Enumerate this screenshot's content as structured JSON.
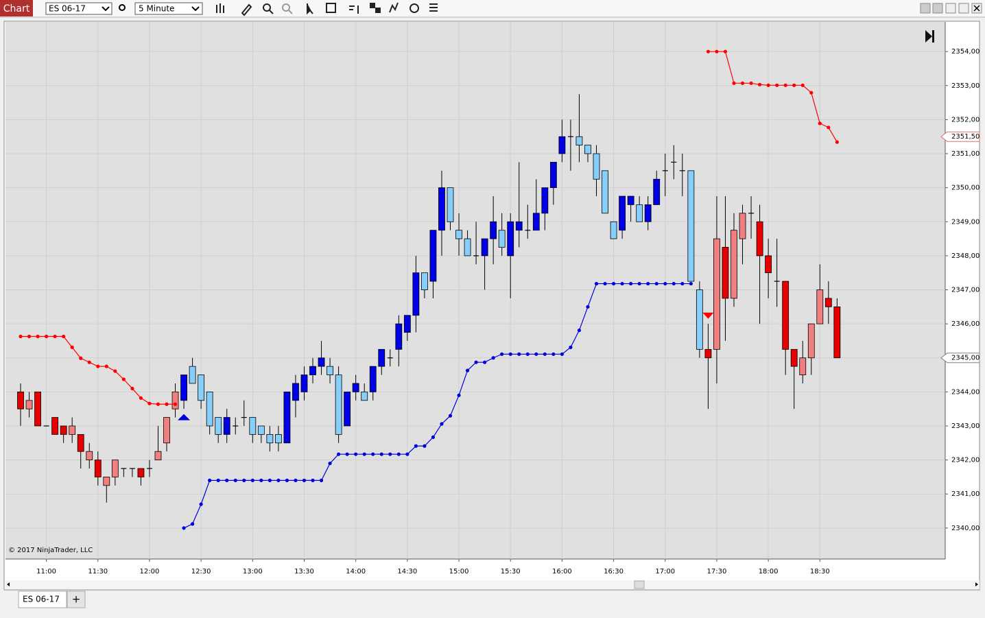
{
  "toolbar": {
    "title": "Chart",
    "instrument": "ES 06-17",
    "interval": "5 Minute"
  },
  "tabs": [
    "ES 06-17"
  ],
  "add_tab": "+",
  "chart_data": {
    "type": "candlestick",
    "copyright": "© 2017 NinjaTrader, LLC",
    "categories": [
      null,
      null,
      null,
      "11:00",
      null,
      null,
      null,
      null,
      null,
      "11:30",
      null,
      null,
      null,
      null,
      null,
      "12:00",
      null,
      null,
      null,
      null,
      null,
      "12:30",
      null,
      null,
      null,
      null,
      null,
      "13:00",
      null,
      null,
      null,
      null,
      null,
      "13:30",
      null,
      null,
      null,
      null,
      null,
      "14:00",
      null,
      null,
      null,
      null,
      null,
      "14:30",
      null,
      null,
      null,
      null,
      null,
      "15:00",
      null,
      null,
      null,
      null,
      null,
      "15:30",
      null,
      null,
      null,
      null,
      null,
      "16:00",
      null,
      null,
      null,
      null,
      null,
      "16:30",
      null,
      null,
      null,
      null,
      null,
      "17:00",
      null,
      null,
      null,
      null,
      null,
      "17:30",
      null,
      null,
      null,
      null,
      null,
      "18:00",
      null,
      null,
      null,
      null,
      null,
      "18:30",
      null,
      null
    ],
    "open": [
      2344,
      2343.5,
      2344,
      2343,
      2343.25,
      2343,
      2342.75,
      2342.75,
      2342,
      2342,
      2341.25,
      2341.5,
      2341.75,
      2341.75,
      2341.75,
      2341.75,
      2342,
      2342.5,
      2343.5,
      2343.75,
      2344.75,
      2344.5,
      2344,
      2343.25,
      2342.75,
      2343,
      2343.25,
      2343.25,
      2343,
      2342.75,
      2342.75,
      2342.5,
      2343.75,
      2344,
      2344.5,
      2344.75,
      2344.75,
      2344.5,
      2343,
      2344,
      2344,
      2344,
      2344.75,
      2345,
      2345.25,
      2345.75,
      2346.25,
      2347.5,
      2347.25,
      2348.75,
      2350,
      2348.75,
      2348.5,
      2348,
      2348,
      2348.5,
      2348.75,
      2348,
      2348.75,
      2348.75,
      2348.75,
      2349.25,
      2350,
      2351,
      2351.5,
      2351.5,
      2351.25,
      2351,
      2350.5,
      2349,
      2348.75,
      2349.5,
      2349.5,
      2349,
      2349.5,
      2350.5,
      2350.75,
      2350.5,
      2350.5,
      2347,
      2345.25,
      2345.25,
      2348.25,
      2346.75,
      2348.5,
      2349.25,
      2349,
      2348,
      2347.25,
      2347.25,
      2345.25,
      2344.5,
      2345,
      2346,
      2346.75,
      2346.5
    ],
    "high": [
      2344.25,
      2344,
      2344,
      2343,
      2343.25,
      2343,
      2343.25,
      2342.75,
      2342.5,
      2342.25,
      2341.5,
      2342,
      2341.75,
      2341.75,
      2341.75,
      2342,
      2343,
      2343.25,
      2344.25,
      2344.5,
      2345,
      2344.5,
      2344,
      2343.25,
      2343.5,
      2343.25,
      2343.75,
      2343.25,
      2343,
      2343,
      2343,
      2344,
      2344.5,
      2344.75,
      2345,
      2345.5,
      2345,
      2344.75,
      2344,
      2344.5,
      2344.25,
      2344.75,
      2345.25,
      2345.25,
      2346.25,
      2346.25,
      2348,
      2347.5,
      2348.75,
      2350.5,
      2350,
      2349.25,
      2348.75,
      2349,
      2348.5,
      2349.75,
      2349.25,
      2349.25,
      2350.75,
      2349.5,
      2350.25,
      2350,
      2350.75,
      2352,
      2352,
      2352.75,
      2351.25,
      2351.25,
      2350.5,
      2349,
      2349.75,
      2349.75,
      2349.75,
      2349.75,
      2350.5,
      2351,
      2351.25,
      2351,
      2350.5,
      2347.25,
      2346,
      2349.75,
      2349.75,
      2349.25,
      2349.5,
      2349.75,
      2349.5,
      2348.5,
      2348.5,
      2347.25,
      2345.25,
      2345.5,
      2346,
      2347.75,
      2347.25,
      2346.75
    ],
    "low": [
      2343,
      2343.25,
      2343,
      2343,
      2342.75,
      2342.5,
      2342.5,
      2341.75,
      2341.75,
      2341.25,
      2340.75,
      2341.25,
      2341.5,
      2341.5,
      2341.25,
      2341.5,
      2342,
      2342.25,
      2343.25,
      2343.5,
      2344.25,
      2343.5,
      2342.75,
      2342.5,
      2342.5,
      2342.75,
      2343,
      2342.5,
      2342.5,
      2342.25,
      2342.25,
      2342.5,
      2343.25,
      2343.75,
      2344.25,
      2344.5,
      2344.25,
      2342.5,
      2343,
      2343.75,
      2343.75,
      2343.75,
      2344.5,
      2344.75,
      2344.75,
      2345.5,
      2345.75,
      2346.75,
      2346.75,
      2348,
      2348.75,
      2348,
      2348,
      2347.75,
      2347,
      2347.75,
      2348,
      2346.75,
      2348.25,
      2348.5,
      2348.75,
      2348.75,
      2349.5,
      2350.75,
      2350.5,
      2350.75,
      2350.75,
      2349.75,
      2349.25,
      2348.5,
      2348.5,
      2349,
      2349,
      2348.75,
      2349.5,
      2349.75,
      2350.25,
      2349.75,
      2347.25,
      2345,
      2343.5,
      2344.25,
      2345.5,
      2346.5,
      2347.75,
      2348.5,
      2346,
      2346.75,
      2346.5,
      2344.5,
      2343.5,
      2344.25,
      2344.5,
      2346,
      2346,
      2345
    ],
    "close": [
      2343.5,
      2343.75,
      2343,
      2343,
      2342.75,
      2342.75,
      2343,
      2342.25,
      2342.25,
      2341.5,
      2341.5,
      2342,
      2341.75,
      2341.75,
      2341.5,
      2341.75,
      2342.25,
      2343.25,
      2344,
      2344.5,
      2344.25,
      2343.75,
      2343,
      2342.75,
      2343.25,
      2343,
      2343.25,
      2342.75,
      2342.75,
      2342.5,
      2342.5,
      2344,
      2344.25,
      2344.5,
      2344.75,
      2345,
      2344.5,
      2342.75,
      2344,
      2344.25,
      2343.75,
      2344.75,
      2345.25,
      2345,
      2346,
      2346.25,
      2347.5,
      2347,
      2348.75,
      2350,
      2349,
      2348.5,
      2348,
      2348,
      2348.5,
      2349,
      2348.25,
      2349,
      2349,
      2348.75,
      2349.25,
      2350,
      2350.75,
      2351.5,
      2351.5,
      2351.25,
      2351,
      2350.25,
      2349.25,
      2348.5,
      2349.75,
      2349.75,
      2349,
      2349.5,
      2350.25,
      2350.5,
      2350.75,
      2350.5,
      2347.25,
      2345.25,
      2345,
      2348.5,
      2346.75,
      2348.75,
      2349.25,
      2349.25,
      2348,
      2347.5,
      2347.25,
      2345.25,
      2344.75,
      2345,
      2346,
      2347,
      2346.5,
      2345
    ],
    "candle_colors": {
      "long_up": "#0000e6",
      "long_down": "#87cefa",
      "short_up": "#f08080",
      "short_down": "#e60000",
      "doji": "#000000"
    },
    "short_stop": {
      "color": "#ff0000",
      "values": [
        2345.63,
        2345.63,
        2345.63,
        2345.63,
        2345.63,
        2345.63,
        2345.31,
        2344.99,
        2344.87,
        2344.75,
        2344.75,
        2344.61,
        2344.37,
        2344.1,
        2343.82,
        2343.66,
        2343.64,
        2343.64,
        2343.64,
        null,
        null,
        null,
        null,
        null,
        null,
        null,
        null,
        null,
        null,
        null,
        null,
        null,
        null,
        null,
        null,
        null,
        null,
        null,
        null,
        null,
        null,
        null,
        null,
        null,
        null,
        null,
        null,
        null,
        null,
        null,
        null,
        null,
        null,
        null,
        null,
        null,
        null,
        null,
        null,
        null,
        null,
        null,
        null,
        null,
        null,
        null,
        null,
        null,
        null,
        null,
        null,
        null,
        null,
        null,
        null,
        null,
        null,
        null,
        null,
        null,
        2354,
        2354,
        2354,
        2353.07,
        2353.07,
        2353.07,
        2353.03,
        2353.01,
        2353.01,
        2353.01,
        2353.01,
        2353.01,
        2352.79,
        2351.89,
        2351.77,
        2351.34
      ]
    },
    "long_stop": {
      "color": "#0000dd",
      "values": [
        null,
        null,
        null,
        null,
        null,
        null,
        null,
        null,
        null,
        null,
        null,
        null,
        null,
        null,
        null,
        null,
        null,
        null,
        null,
        2340,
        2340.12,
        2340.7,
        2341.4,
        2341.4,
        2341.4,
        2341.4,
        2341.4,
        2341.4,
        2341.4,
        2341.4,
        2341.4,
        2341.4,
        2341.4,
        2341.4,
        2341.4,
        2341.4,
        2341.9,
        2342.17,
        2342.17,
        2342.17,
        2342.17,
        2342.17,
        2342.17,
        2342.17,
        2342.17,
        2342.17,
        2342.41,
        2342.41,
        2342.67,
        2343.06,
        2343.3,
        2343.9,
        2344.63,
        2344.87,
        2344.87,
        2345,
        2345.11,
        2345.11,
        2345.11,
        2345.11,
        2345.11,
        2345.11,
        2345.11,
        2345.11,
        2345.31,
        2345.81,
        2346.5,
        2347.18,
        2347.18,
        2347.18,
        2347.18,
        2347.18,
        2347.18,
        2347.18,
        2347.18,
        2347.18,
        2347.18,
        2347.18,
        2347.18,
        null,
        null,
        null,
        null,
        null,
        null,
        null,
        null,
        null,
        null,
        null,
        null,
        null,
        null,
        null,
        null
      ]
    },
    "long_signal": {
      "color": "#0000dd",
      "values": [
        null,
        null,
        null,
        null,
        null,
        null,
        null,
        null,
        null,
        null,
        null,
        null,
        null,
        null,
        null,
        null,
        null,
        null,
        null,
        2343.25,
        null,
        null,
        null,
        null,
        null,
        null,
        null,
        null,
        null,
        null,
        null,
        null,
        null,
        null,
        null,
        null,
        null,
        null,
        null,
        null,
        null,
        null,
        null,
        null,
        null,
        null,
        null,
        null,
        null,
        null,
        null,
        null,
        null,
        null,
        null,
        null,
        null,
        null,
        null,
        null,
        null,
        null,
        null,
        null,
        null,
        null,
        null,
        null,
        null,
        null,
        null,
        null,
        null,
        null,
        null,
        null,
        null,
        null,
        null,
        null,
        null,
        null,
        null,
        null,
        null,
        null,
        null,
        null,
        null,
        null,
        null,
        null,
        null,
        null,
        null,
        null
      ]
    },
    "short_signal": {
      "color": "#ff0000",
      "values": [
        null,
        null,
        null,
        null,
        null,
        null,
        null,
        null,
        null,
        null,
        null,
        null,
        null,
        null,
        null,
        null,
        null,
        null,
        null,
        null,
        null,
        null,
        null,
        null,
        null,
        null,
        null,
        null,
        null,
        null,
        null,
        null,
        null,
        null,
        null,
        null,
        null,
        null,
        null,
        null,
        null,
        null,
        null,
        null,
        null,
        null,
        null,
        null,
        null,
        null,
        null,
        null,
        null,
        null,
        null,
        null,
        null,
        null,
        null,
        null,
        null,
        null,
        null,
        null,
        null,
        null,
        null,
        null,
        null,
        null,
        null,
        null,
        null,
        null,
        null,
        null,
        null,
        null,
        null,
        null,
        2346.25,
        null,
        null,
        null,
        null,
        null,
        null,
        null,
        null,
        null,
        null,
        null,
        null,
        null,
        null,
        null
      ]
    },
    "ylim": [
      2339.09,
      2354.87
    ],
    "yticks": [
      {
        "value": 2340,
        "label": "2340,00"
      },
      {
        "value": 2341,
        "label": "2341,00"
      },
      {
        "value": 2342,
        "label": "2342,00"
      },
      {
        "value": 2343,
        "label": "2343,00"
      },
      {
        "value": 2344,
        "label": "2344,00"
      },
      {
        "value": 2345,
        "label": "2345,00"
      },
      {
        "value": 2346,
        "label": "2346,00"
      },
      {
        "value": 2347,
        "label": "2347,00"
      },
      {
        "value": 2348,
        "label": "2348,00"
      },
      {
        "value": 2349,
        "label": "2349,00"
      },
      {
        "value": 2350,
        "label": "2350,00"
      },
      {
        "value": 2351,
        "label": "2351,00"
      },
      {
        "value": 2352,
        "label": "2352,00"
      },
      {
        "value": 2353,
        "label": "2353,00"
      },
      {
        "value": 2354,
        "label": "2354,00"
      }
    ],
    "price_markers": [
      {
        "value": 2351.5,
        "label": "2351,50",
        "color": "#e07070"
      },
      {
        "value": 2345,
        "label": "2345,00",
        "color": "#808080"
      }
    ],
    "grid": true
  }
}
